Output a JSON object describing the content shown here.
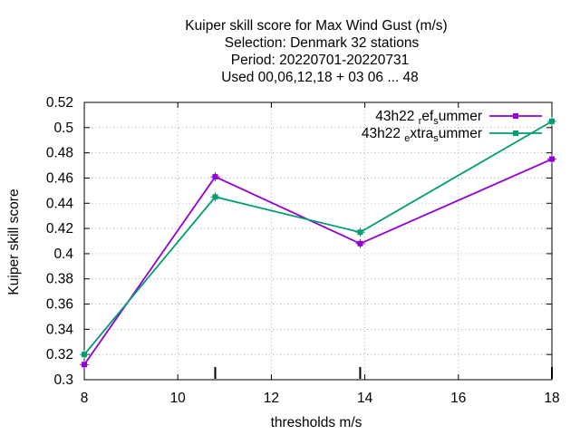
{
  "chart_data": {
    "type": "line",
    "title_lines": [
      "Kuiper skill score  for Max Wind Gust (m/s)",
      "Selection: Denmark      32 stations",
      "Period: 20220701-20220731",
      "Used  00,06,12,18  + 03 06 ... 48"
    ],
    "xlabel": "thresholds m/s",
    "ylabel": "Kuiper skill score",
    "xlim": [
      8,
      18
    ],
    "ylim": [
      0.3,
      0.52
    ],
    "x_ticks": [
      8,
      10,
      12,
      14,
      16,
      18
    ],
    "x_tick_labels": [
      "8",
      "10",
      "12",
      "14",
      "16",
      "18"
    ],
    "y_ticks": [
      0.3,
      0.32,
      0.34,
      0.36,
      0.38,
      0.4,
      0.42,
      0.44,
      0.46,
      0.48,
      0.5,
      0.52
    ],
    "y_tick_labels": [
      "0.3",
      "0.32",
      "0.34",
      "0.36",
      "0.38",
      "0.4",
      "0.42",
      "0.44",
      "0.46",
      "0.48",
      "0.5",
      "0.52"
    ],
    "grid": true,
    "legend_position": "top-right",
    "threshold_markers_x": [
      10.8,
      13.9,
      18
    ],
    "series": [
      {
        "name": "43h22 ref summer",
        "legend_parts": {
          "a": "43h22 ",
          "b": "r",
          "c": "ef",
          "d": "s",
          "e": "ummer"
        },
        "color": "#9400d3",
        "x": [
          8,
          10.8,
          13.9,
          18
        ],
        "y": [
          0.312,
          0.461,
          0.408,
          0.475
        ]
      },
      {
        "name": "43h22 extra summer",
        "legend_parts": {
          "a": "43h22 ",
          "b": "e",
          "c": "xtra",
          "d": "s",
          "e": "ummer"
        },
        "color": "#009e73",
        "x": [
          8,
          10.8,
          13.9,
          18
        ],
        "y": [
          0.32,
          0.445,
          0.417,
          0.505
        ]
      }
    ]
  }
}
